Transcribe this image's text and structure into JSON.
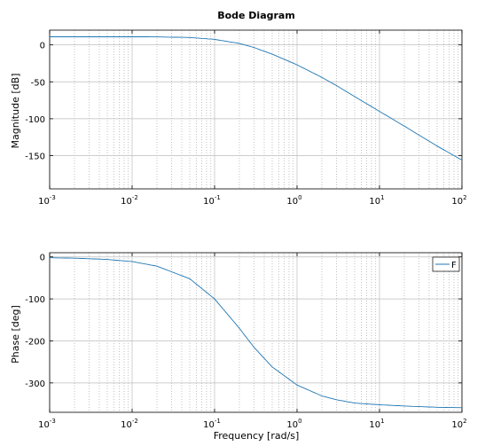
{
  "chart_data": [
    {
      "type": "line",
      "title": "Bode Diagram",
      "xlabel": "",
      "ylabel": "Magnitude [dB]",
      "xscale": "log",
      "xlim": [
        0.001,
        100
      ],
      "ylim": [
        -195,
        20
      ],
      "grid": true,
      "x_tick_labels": [
        {
          "base": "10",
          "exp": "-3",
          "value": 0.001
        },
        {
          "base": "10",
          "exp": "-2",
          "value": 0.01
        },
        {
          "base": "10",
          "exp": "-1",
          "value": 0.1
        },
        {
          "base": "10",
          "exp": "0",
          "value": 1
        },
        {
          "base": "10",
          "exp": "1",
          "value": 10
        },
        {
          "base": "10",
          "exp": "2",
          "value": 100
        }
      ],
      "y_tick_labels": [
        "0",
        "-50",
        "-100",
        "-150"
      ],
      "y_ticks": [
        0,
        -50,
        -100,
        -150
      ],
      "series": [
        {
          "color": "#1f77b4",
          "x": [
            0.001,
            0.003,
            0.01,
            0.02,
            0.05,
            0.1,
            0.2,
            0.3,
            0.5,
            1,
            2,
            3,
            5,
            10,
            20,
            50,
            100
          ],
          "y": [
            11,
            11,
            11,
            10.9,
            10,
            7.5,
            2,
            -3.5,
            -12.5,
            -27,
            -44,
            -55,
            -70,
            -90,
            -110,
            -137,
            -156
          ]
        }
      ]
    },
    {
      "type": "line",
      "title": "",
      "xlabel": "Frequency [rad/s]",
      "ylabel": "Phase [deg]",
      "xscale": "log",
      "xlim": [
        0.001,
        100
      ],
      "ylim": [
        -370,
        10
      ],
      "grid": true,
      "legend": {
        "position": "top-right",
        "entries": [
          "F"
        ]
      },
      "x_tick_labels": [
        {
          "base": "10",
          "exp": "-3",
          "value": 0.001
        },
        {
          "base": "10",
          "exp": "-2",
          "value": 0.01
        },
        {
          "base": "10",
          "exp": "-1",
          "value": 0.1
        },
        {
          "base": "10",
          "exp": "0",
          "value": 1
        },
        {
          "base": "10",
          "exp": "1",
          "value": 10
        },
        {
          "base": "10",
          "exp": "2",
          "value": 100
        }
      ],
      "y_tick_labels": [
        "0",
        "-100",
        "-200",
        "-300"
      ],
      "y_ticks": [
        0,
        -100,
        -200,
        -300
      ],
      "series": [
        {
          "name": "F",
          "color": "#1f77b4",
          "x": [
            0.001,
            0.002,
            0.005,
            0.01,
            0.02,
            0.05,
            0.1,
            0.2,
            0.3,
            0.5,
            1,
            2,
            3,
            5,
            10,
            20,
            50,
            100
          ],
          "y": [
            -2,
            -3,
            -6,
            -11,
            -22,
            -52,
            -100,
            -170,
            -215,
            -262,
            -305,
            -331,
            -340,
            -348,
            -352,
            -355,
            -358,
            -359
          ]
        }
      ]
    }
  ]
}
